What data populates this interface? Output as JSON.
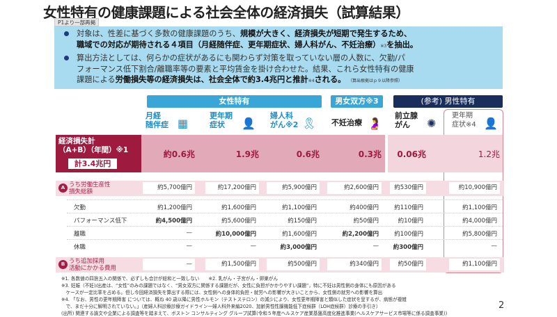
{
  "title": "女性特有の健康課題による社会全体の経済損失（試算結果）",
  "tag": "P1より一部再掲",
  "summary": {
    "b1_l1a": "対象は、性差に基づく多数の健康課題のうち、",
    "b1_l1b": "規模が大きく、経済損失が短期で発生するため、",
    "b1_l2a": "職域での対応が期待される４項目（月経随伴症、更年期症状、婦人科がん、不妊治療）",
    "b1_l2n": "※3",
    "b1_l2b": "を抽出。",
    "b2_l1": "算出方法としては、何らかの症状があるにも関わらず対策を取っていない層の人数に、欠勤/パ",
    "b2_l2": "フォーマンス低下割合/離職率等の要素と平均賃金を掛け合わせた。結果、これら女性特有の健康",
    "b2_l3a": "課題による",
    "b2_l3b": "労働損失等の経済損失は、社会全体で約3.4兆円と推計",
    "b2_l3n": "※4",
    "b2_l3c": "される。",
    "b2_ref": "（算出根拠はｐ９以降参照）"
  },
  "groups": {
    "female": "女性特有",
    "both": "男女双方※3",
    "male": "(参考) 男性特有"
  },
  "columns": [
    {
      "l1": "月経",
      "l2": "随伴症",
      "icon": "calendar-icon"
    },
    {
      "l1": "更年期",
      "l2": "症状",
      "icon": "woman-icon"
    },
    {
      "l1": "婦人科",
      "l2": "がん※2",
      "icon": "ribbon-icon"
    },
    {
      "l1": "不妊治療",
      "l2": "",
      "icon": "pregnant-icon"
    },
    {
      "l1": "前立腺",
      "l2": "がん",
      "icon": "cell-icon"
    },
    {
      "l1": "更年期",
      "l2": "症状※4",
      "icon": "man-icon"
    }
  ],
  "total": {
    "l1": "経済損失計",
    "l2": "（A+B）（年間）※1",
    "sum": "計3.4兆円",
    "values": [
      "約0.6兆",
      "1.9兆",
      "0.6兆",
      "0.3兆",
      "0.06兆",
      "1.2兆"
    ]
  },
  "rowA": {
    "badge": "A",
    "l1": "うち労働生産性",
    "l2": "損失総額",
    "values": [
      "約5,700億円",
      "約17,200億円",
      "約5,900億円",
      "約2,600億円",
      "約530億円",
      "約10,900億円"
    ]
  },
  "subrows": [
    {
      "label": "欠勤",
      "values": [
        "約1,200億円",
        "約1,600億円",
        "約1,100億円",
        "約400億円",
        "約110億円",
        "約1,100億円"
      ]
    },
    {
      "label": "パフォーマンス低下",
      "values": [
        "約4,500億円",
        "約5,600億円",
        "約150億円",
        "約50億円",
        "約10億円",
        "約4,000億円"
      ]
    },
    {
      "label": "離職",
      "values": [
        "—",
        "約10,000億円",
        "約1,600億円",
        "約2,200億円",
        "約100億円",
        "約5,800億円"
      ]
    },
    {
      "label": "休職",
      "values": [
        "—",
        "—",
        "約3,000億円",
        "—",
        "約300億円",
        "—"
      ]
    }
  ],
  "rowB": {
    "badge": "B",
    "l1": "うち追加採用",
    "l2": "活動にかかる費用",
    "values": [
      "—",
      "約1,500億円",
      "約500億円",
      "約340億円",
      "約50億円",
      "約1,100億円"
    ]
  },
  "notes": [
    "※1. 各数値の四捨五入の関係で、必ずしも合計が総和と一致しない　　※2. 乳がん・子宮がん・卵巣がん",
    "※3. 妊娠（不妊)/出産は、“女性”のみの課題ではなく、“男女双方に関係する課題だが、女性に負担がかかりやすい課題”，特に不妊は男性側の身体にも原因がある",
    "　ケースが一定比率を占める。但し今回経済損失を算出する際には、女性側への身体的負担・就労への影響が大きいことから、女性側の就労への影響を算出",
    "※4. 「なお、男性の更年期障害 については、概ね 40 歳以降に男性ホルモン（テストステロン）の減少により、女性更年期障害と類似した症状を呈するが、病態が複雑",
    "　で、まだ十分に解明されていない。」（産婦人科診療診療ガイドライン一婦人科外来編2020、加齢男性性腺機能低下症候群（LOH症候群）診療の手引き）",
    "(出所) 関連する論文や企業による調査等を踏まえて、ボストン コンサルティング グループ試算(令和５年度ヘルスケア産業基盤高度化推進事業(ヘルスケアサービス市場等に係る調査事業))"
  ],
  "page": "2",
  "colors": {
    "crimson": "#9e1a3e",
    "blue": "#3aa6d8",
    "navy": "#1a2e5c",
    "summary_bg": "#a8dbef"
  }
}
